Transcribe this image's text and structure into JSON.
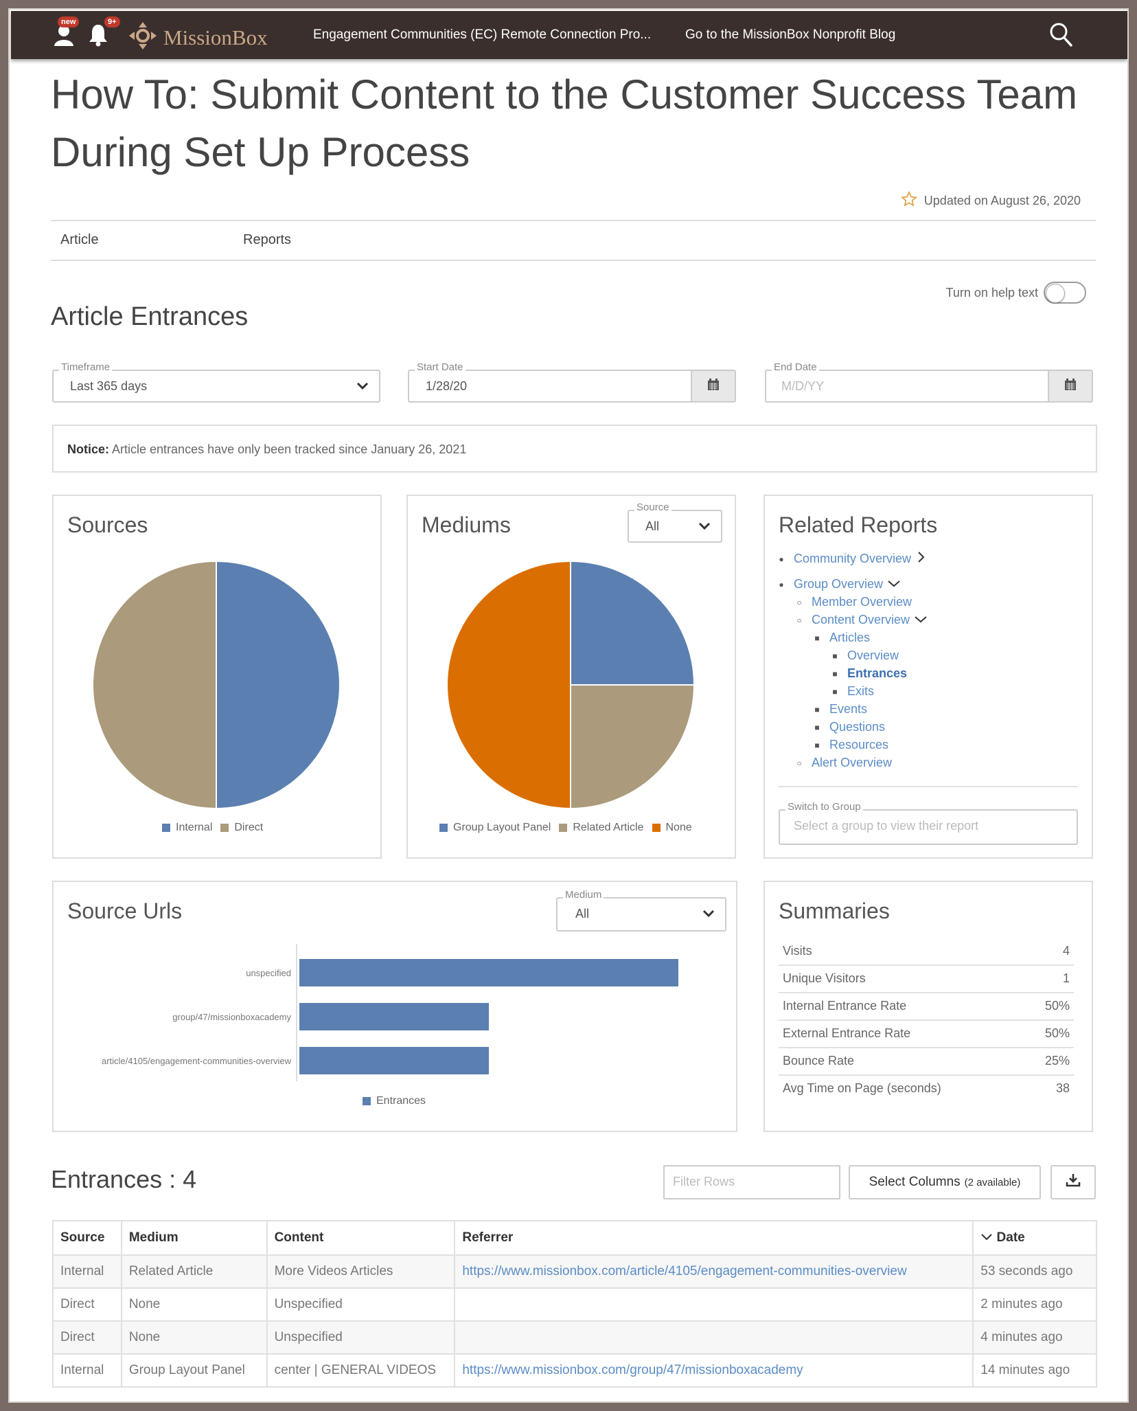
{
  "topnav": {
    "new_badge": "new",
    "notif_badge": "9+",
    "brand": "MissionBox",
    "link1": "Engagement Communities (EC) Remote Connection Pro...",
    "link2": "Go to the MissionBox Nonprofit Blog",
    "icons": [
      "user-icon",
      "bell-icon",
      "logo-icon",
      "search-icon"
    ]
  },
  "page": {
    "title": "How To: Submit Content to the Customer Success Team During Set Up Process",
    "updated": "Updated on August 26, 2020",
    "tabs": [
      "Article",
      "Reports"
    ]
  },
  "report": {
    "title": "Article Entrances",
    "help_label": "Turn on help text",
    "help_on": false,
    "timeframe_label": "Timeframe",
    "timeframe_value": "Last 365 days",
    "start_label": "Start Date",
    "start_value": "1/28/20",
    "end_label": "End Date",
    "end_placeholder": "M/D/YY",
    "notice_bold": "Notice:",
    "notice_text": " Article entrances have only been tracked since January 26, 2021"
  },
  "sources": {
    "title": "Sources",
    "legend": [
      "Internal",
      "Direct"
    ]
  },
  "mediums": {
    "title": "Mediums",
    "source_label": "Source",
    "source_value": "All",
    "legend": [
      "Group Layout Panel",
      "Related Article",
      "None"
    ]
  },
  "related": {
    "title": "Related Reports",
    "items": {
      "community": "Community Overview",
      "group": "Group Overview",
      "member": "Member Overview",
      "content": "Content Overview",
      "articles": "Articles",
      "overview": "Overview",
      "entrances": "Entrances",
      "exits": "Exits",
      "events": "Events",
      "questions": "Questions",
      "resources": "Resources",
      "alert": "Alert Overview"
    },
    "switch_label": "Switch to Group",
    "switch_placeholder": "Select a group to view their report"
  },
  "source_urls": {
    "title": "Source Urls",
    "medium_label": "Medium",
    "medium_value": "All",
    "legend": "Entrances"
  },
  "summaries": {
    "title": "Summaries",
    "rows": [
      {
        "k": "Visits",
        "v": "4"
      },
      {
        "k": "Unique Visitors",
        "v": "1"
      },
      {
        "k": "Internal Entrance Rate",
        "v": "50%"
      },
      {
        "k": "External Entrance Rate",
        "v": "50%"
      },
      {
        "k": "Bounce Rate",
        "v": "25%"
      },
      {
        "k": "Avg Time on Page (seconds)",
        "v": "38"
      }
    ]
  },
  "entrances": {
    "title": "Entrances : 4",
    "filter_placeholder": "Filter Rows",
    "select_columns": "Select Columns",
    "select_columns_small": "(2 available)",
    "columns": [
      "Source",
      "Medium",
      "Content",
      "Referrer",
      "Date"
    ],
    "rows": [
      [
        "Internal",
        "Related Article",
        "More Videos Articles",
        "https://www.missionbox.com/article/4105/engagement-communities-overview",
        "53 seconds ago"
      ],
      [
        "Direct",
        "None",
        "Unspecified",
        "",
        "2 minutes ago"
      ],
      [
        "Direct",
        "None",
        "Unspecified",
        "",
        "4 minutes ago"
      ],
      [
        "Internal",
        "Group Layout Panel",
        "center | GENERAL VIDEOS",
        "https://www.missionbox.com/group/47/missionboxacademy",
        "14 minutes ago"
      ]
    ]
  },
  "colors": {
    "nav": "#3b2f2d",
    "blue": "#5b7fb0",
    "tan": "#ab9a7b",
    "orange": "#db6e00",
    "link": "#5b8cc7"
  },
  "chart_data": [
    {
      "type": "pie",
      "title": "Sources",
      "categories": [
        "Internal",
        "Direct"
      ],
      "values": [
        2,
        2
      ],
      "colors": [
        "#5b7fb0",
        "#ab9a7b"
      ]
    },
    {
      "type": "pie",
      "title": "Mediums",
      "categories": [
        "Group Layout Panel",
        "Related Article",
        "None"
      ],
      "values": [
        1,
        1,
        2
      ],
      "colors": [
        "#5b7fb0",
        "#ab9a7b",
        "#db6e00"
      ]
    },
    {
      "type": "bar",
      "title": "Source Urls",
      "orientation": "horizontal",
      "categories": [
        "unspecified",
        "group/47/missionboxacademy",
        "article/4105/engagement-communities-overview"
      ],
      "series": [
        {
          "name": "Entrances",
          "values": [
            2,
            1,
            1
          ]
        }
      ],
      "legend": "bottom",
      "grid": false
    }
  ]
}
